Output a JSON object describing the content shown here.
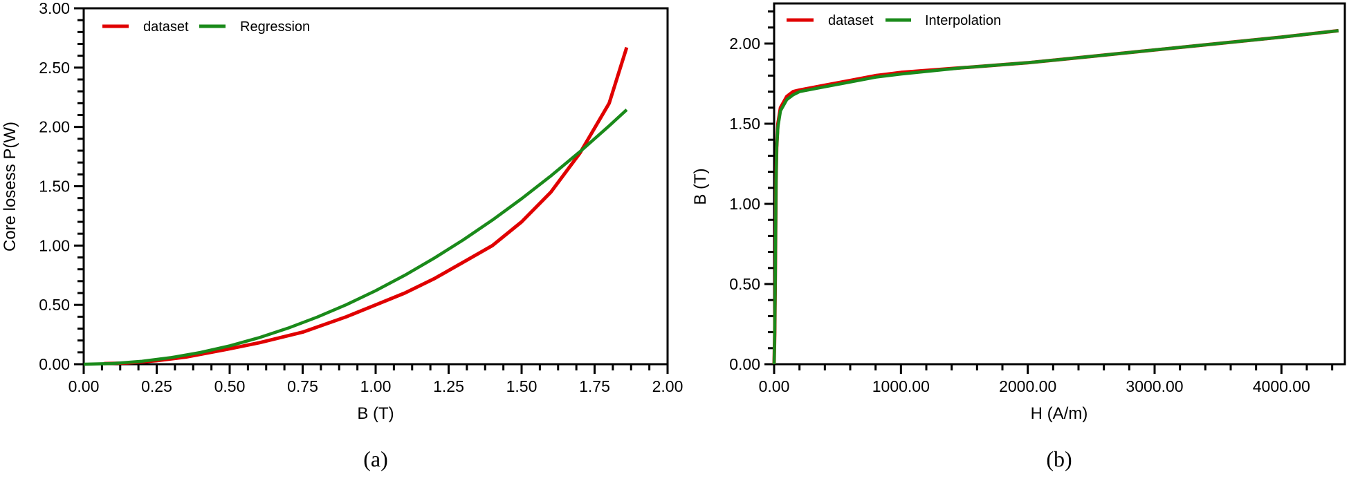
{
  "colors": {
    "dataset": "#e00000",
    "fit": "#1a8a1a",
    "axis": "#000000"
  },
  "chart_data": [
    {
      "type": "line",
      "caption": "(a)",
      "title": "",
      "xlabel": "B (T)",
      "ylabel": "Core losess P(W)",
      "xlim": [
        0,
        2.0
      ],
      "ylim": [
        0,
        3.0
      ],
      "xticks": [
        "0.00",
        "0.25",
        "0.50",
        "0.75",
        "1.00",
        "1.25",
        "1.50",
        "1.75",
        "2.00"
      ],
      "yticks": [
        "0.00",
        "0.50",
        "1.00",
        "1.50",
        "2.00",
        "2.50",
        "3.00"
      ],
      "legend_placement": "top-left",
      "grid": false,
      "series": [
        {
          "name": "dataset",
          "color_key": "dataset",
          "x": [
            0.07,
            0.15,
            0.25,
            0.35,
            0.5,
            0.6,
            0.75,
            0.9,
            1.0,
            1.1,
            1.2,
            1.3,
            1.4,
            1.5,
            1.6,
            1.7,
            1.8,
            1.86
          ],
          "y": [
            0.005,
            0.01,
            0.03,
            0.06,
            0.13,
            0.18,
            0.27,
            0.4,
            0.5,
            0.6,
            0.72,
            0.86,
            1.0,
            1.2,
            1.45,
            1.78,
            2.2,
            2.67
          ]
        },
        {
          "name": "Regression",
          "color_key": "fit",
          "x": [
            0.0,
            0.1,
            0.2,
            0.3,
            0.4,
            0.5,
            0.6,
            0.7,
            0.8,
            0.9,
            1.0,
            1.1,
            1.2,
            1.3,
            1.4,
            1.5,
            1.6,
            1.7,
            1.8,
            1.86
          ],
          "y": [
            0.0,
            0.006,
            0.025,
            0.056,
            0.099,
            0.155,
            0.223,
            0.304,
            0.397,
            0.502,
            0.62,
            0.75,
            0.893,
            1.048,
            1.215,
            1.395,
            1.587,
            1.792,
            2.009,
            2.145
          ]
        }
      ]
    },
    {
      "type": "line",
      "caption": "(b)",
      "title": "",
      "xlabel": "H (A/m)",
      "ylabel": "B (T)",
      "xlim": [
        0,
        4500
      ],
      "ylim": [
        0,
        2.25
      ],
      "xticks": [
        "0.00",
        "1000.00",
        "2000.00",
        "3000.00",
        "4000.00"
      ],
      "yticks": [
        "0.00",
        "0.50",
        "1.00",
        "1.50",
        "2.00"
      ],
      "legend_placement": "top-left",
      "grid": false,
      "series": [
        {
          "name": "dataset",
          "color_key": "dataset",
          "x": [
            0,
            5,
            10,
            15,
            20,
            30,
            50,
            100,
            150,
            200,
            400,
            600,
            800,
            1000,
            1500,
            2000,
            2500,
            3000,
            3500,
            4000,
            4450
          ],
          "y": [
            0,
            0.2,
            0.6,
            1.15,
            1.35,
            1.5,
            1.6,
            1.67,
            1.7,
            1.71,
            1.74,
            1.77,
            1.8,
            1.82,
            1.85,
            1.88,
            1.92,
            1.96,
            2.0,
            2.04,
            2.08
          ]
        },
        {
          "name": "Interpolation",
          "color_key": "fit",
          "x": [
            0,
            5,
            10,
            15,
            20,
            30,
            50,
            100,
            150,
            200,
            400,
            600,
            800,
            1000,
            1500,
            2000,
            2500,
            3000,
            3500,
            4000,
            4450
          ],
          "y": [
            0,
            0.2,
            0.6,
            1.15,
            1.35,
            1.48,
            1.58,
            1.65,
            1.68,
            1.7,
            1.73,
            1.76,
            1.79,
            1.81,
            1.85,
            1.88,
            1.92,
            1.96,
            2.0,
            2.04,
            2.08
          ]
        }
      ]
    }
  ]
}
